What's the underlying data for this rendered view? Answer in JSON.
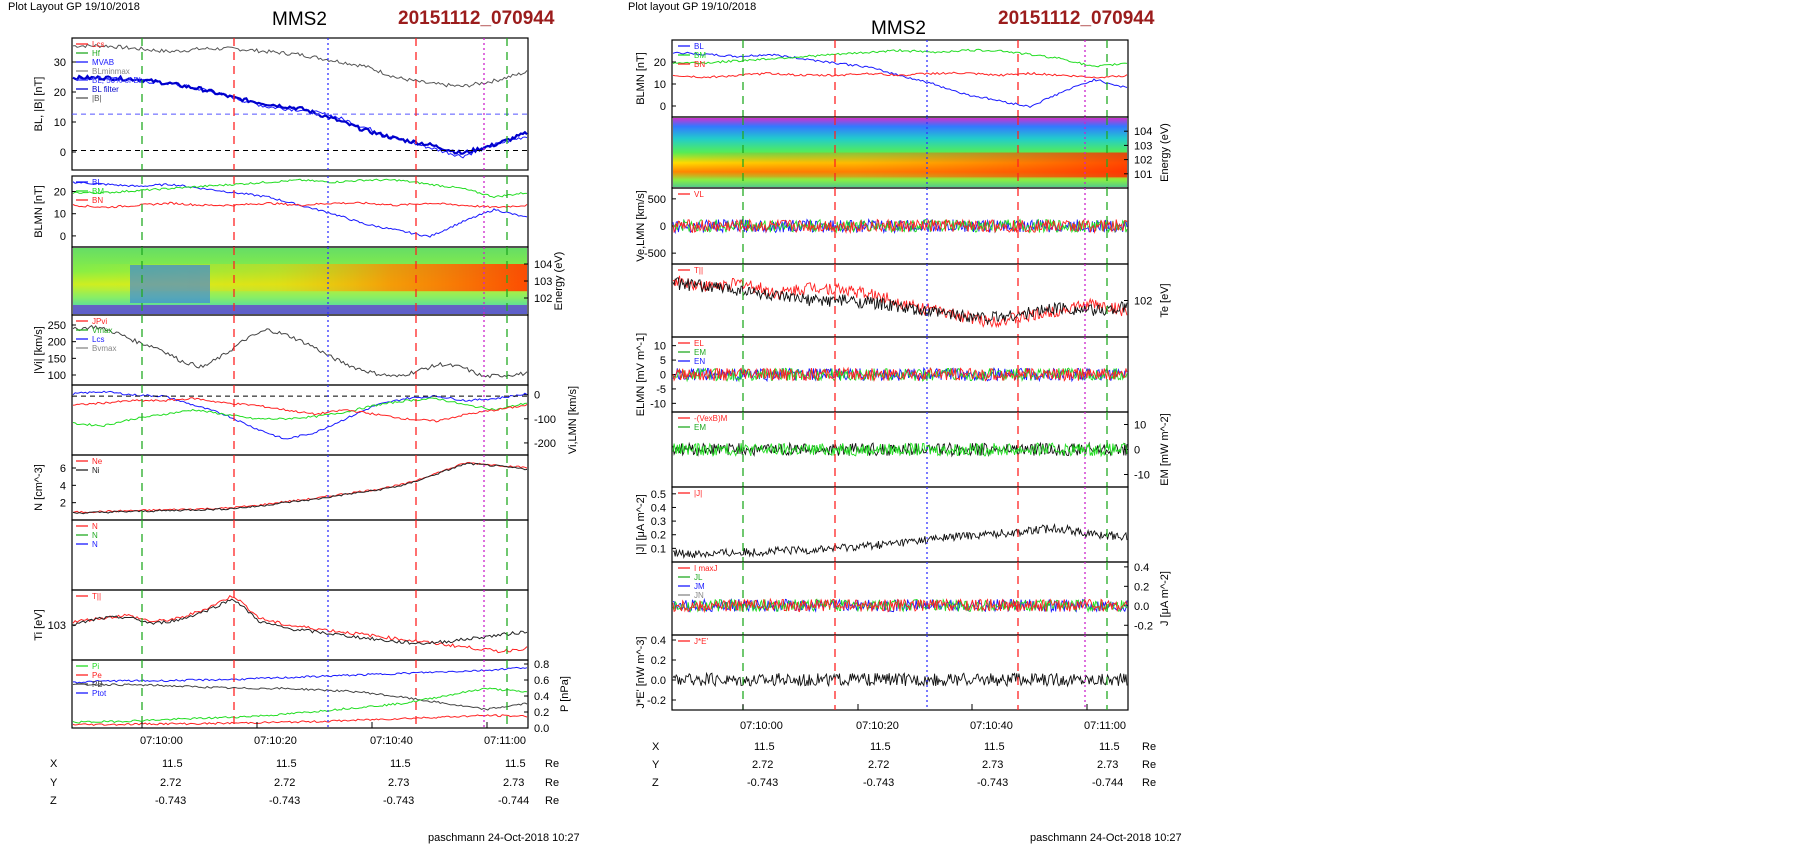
{
  "left": {
    "header": {
      "layout": "Plot Layout GP 19/10/2018",
      "spacecraft": "MMS2",
      "event_id": "20151112_070944"
    },
    "time_ticks": [
      "07:10:00",
      "07:10:20",
      "07:10:40",
      "07:11:00"
    ],
    "orbit_rows": [
      {
        "label": "X",
        "values": [
          "11.5",
          "11.5",
          "11.5",
          "11.5"
        ],
        "unit": "Re"
      },
      {
        "label": "Y",
        "values": [
          "2.72",
          "2.72",
          "2.73",
          "2.73"
        ],
        "unit": "Re"
      },
      {
        "label": "Z",
        "values": [
          "-0.743",
          "-0.743",
          "-0.743",
          "-0.744"
        ],
        "unit": "Re"
      }
    ],
    "footer": "paschmann 24-Oct-2018 10:27"
  },
  "right": {
    "header": {
      "layout": "Plot layout GP 19/10/2018",
      "spacecraft": "MMS2",
      "event_id": "20151112_070944"
    },
    "time_ticks": [
      "07:10:00",
      "07:10:20",
      "07:10:40",
      "07:11:00"
    ],
    "orbit_rows": [
      {
        "label": "X",
        "values": [
          "11.5",
          "11.5",
          "11.5",
          "11.5"
        ],
        "unit": "Re"
      },
      {
        "label": "Y",
        "values": [
          "2.72",
          "2.72",
          "2.73",
          "2.73"
        ],
        "unit": "Re"
      },
      {
        "label": "Z",
        "values": [
          "-0.743",
          "-0.743",
          "-0.743",
          "-0.744"
        ],
        "unit": "Re"
      }
    ],
    "footer": "paschmann 24-Oct-2018 10:27"
  },
  "chart_data": [
    {
      "type": "line",
      "panel": "left-1",
      "ylabel": "BL, |B| [nT]",
      "yticks": [
        "0",
        "10",
        "20",
        "30"
      ],
      "ylim": [
        -6,
        38
      ],
      "legend": [
        "Lcs",
        "Hf",
        "MVAB",
        "BLminmax",
        "BL, 50% of BL",
        "BL filter",
        "|B|"
      ],
      "series": [
        {
          "name": "|B|",
          "color": "#555555",
          "values": [
            36,
            36,
            35,
            34,
            35,
            35,
            34,
            33,
            31,
            29,
            25,
            23,
            22,
            24,
            27
          ]
        },
        {
          "name": "BL",
          "color": "#1a1aff",
          "values": [
            25,
            25,
            24,
            23,
            21,
            18,
            15,
            14,
            12,
            8,
            4,
            1,
            -2,
            2,
            5
          ]
        },
        {
          "name": "BL filter",
          "color": "#0000cc",
          "values": [
            25,
            25,
            24.5,
            23,
            21,
            18,
            16,
            14.5,
            11,
            7,
            4,
            2,
            -1,
            2,
            6
          ]
        }
      ],
      "hlines": [
        {
          "y": 12.5,
          "style": "blue-dashed"
        },
        {
          "y": 0,
          "style": "black-dashed"
        }
      ]
    },
    {
      "type": "line",
      "panel": "left-2",
      "ylabel": "BLMN [nT]",
      "yticks": [
        "0",
        "10",
        "20"
      ],
      "ylim": [
        -5,
        27
      ],
      "legend": [
        "BL",
        "BM",
        "BN"
      ],
      "series": [
        {
          "name": "BL",
          "color": "#1a1aff",
          "values": [
            25,
            24,
            23,
            24,
            22,
            20,
            18,
            14,
            10,
            5,
            2,
            -1,
            6,
            12,
            8
          ]
        },
        {
          "name": "BM",
          "color": "#22dd22",
          "values": [
            20,
            20,
            21,
            22,
            23,
            24,
            25,
            26,
            25,
            26,
            26,
            24,
            22,
            18,
            20
          ]
        },
        {
          "name": "BN",
          "color": "#ff2222",
          "values": [
            14,
            13,
            14,
            15,
            14,
            14,
            15,
            14,
            15,
            15,
            14,
            15,
            14,
            13,
            14
          ]
        }
      ]
    },
    {
      "type": "heatmap",
      "panel": "left-3",
      "ylabel": "Energy (eV)",
      "yticks": [
        "10^4",
        "10^3",
        "10^2"
      ]
    },
    {
      "type": "line",
      "panel": "left-4",
      "ylabel": "|Vi| [km/s]",
      "yticks": [
        "100",
        "150",
        "200",
        "250"
      ],
      "ylim": [
        70,
        280
      ],
      "legend": [
        "JPvi",
        "Vmax",
        "Lcs",
        "Bvmax"
      ],
      "series": [
        {
          "name": "|Vi|",
          "color": "#444444",
          "values": [
            240,
            250,
            230,
            200,
            180,
            140,
            120,
            160,
            210,
            240,
            220,
            190,
            150,
            120,
            100,
            90,
            110,
            130,
            120,
            90,
            95,
            100
          ]
        }
      ]
    },
    {
      "type": "line",
      "panel": "left-5",
      "ylabel": "Vi,LMN [km/s]",
      "yticks": [
        "0",
        "-100",
        "-200"
      ],
      "ylim": [
        -250,
        40
      ],
      "series": [
        {
          "name": "ViL",
          "color": "#1a1aff",
          "values": [
            10,
            20,
            5,
            0,
            -40,
            -80,
            -140,
            -190,
            -160,
            -100,
            -40,
            -10,
            0,
            -20,
            -10,
            10
          ]
        },
        {
          "name": "ViM",
          "color": "#22dd22",
          "values": [
            -120,
            -130,
            -100,
            -80,
            -60,
            -80,
            -100,
            -100,
            -90,
            -70,
            -40,
            -20,
            -10,
            -40,
            -60,
            -30
          ]
        },
        {
          "name": "ViN",
          "color": "#ff2222",
          "values": [
            -40,
            -30,
            -20,
            -20,
            -10,
            -30,
            -40,
            -60,
            -80,
            -60,
            -80,
            -100,
            -110,
            -80,
            -60,
            -40
          ]
        }
      ]
    },
    {
      "type": "line",
      "panel": "left-6",
      "ylabel": "N [cm^-3]",
      "yticks": [
        "2",
        "4",
        "6"
      ],
      "ylim": [
        0,
        7.5
      ],
      "legend": [
        "Ne",
        "Ni"
      ],
      "series": [
        {
          "name": "Ne",
          "color": "#ff2222",
          "values": [
            0.7,
            0.8,
            0.9,
            1.0,
            1.1,
            1.2,
            1.5,
            2.0,
            2.4,
            3.0,
            3.5,
            4.2,
            5.5,
            6.8,
            6.5,
            6.2
          ]
        },
        {
          "name": "Ni",
          "color": "#222222",
          "values": [
            0.6,
            0.7,
            0.8,
            0.9,
            1.0,
            1.1,
            1.4,
            1.9,
            2.3,
            2.9,
            3.4,
            4.1,
            5.4,
            6.7,
            6.4,
            6.0
          ]
        }
      ]
    },
    {
      "type": "line",
      "panel": "left-7",
      "legend": [
        "N",
        "N",
        "N"
      ]
    },
    {
      "type": "line",
      "panel": "left-8",
      "ylabel": "Ti [eV]",
      "yticks": [
        "10^3"
      ],
      "legend": [
        "T||"
      ],
      "series": [
        {
          "name": "T||",
          "color": "#ff2222",
          "values": [
            0.55,
            0.6,
            0.65,
            0.55,
            0.6,
            0.75,
            0.95,
            0.6,
            0.5,
            0.45,
            0.4,
            0.35,
            0.3,
            0.25,
            0.2,
            0.15,
            0.1,
            0.15
          ]
        },
        {
          "name": "Ti",
          "color": "#222222",
          "values": [
            0.5,
            0.6,
            0.62,
            0.52,
            0.58,
            0.72,
            0.9,
            0.55,
            0.45,
            0.4,
            0.35,
            0.3,
            0.25,
            0.22,
            0.25,
            0.3,
            0.35,
            0.4
          ]
        }
      ]
    },
    {
      "type": "line",
      "panel": "left-9",
      "ylabel": "P [nPa]",
      "yticks": [
        "0.0",
        "0.2",
        "0.4",
        "0.6",
        "0.8"
      ],
      "ylim": [
        0,
        0.85
      ],
      "legend": [
        "Pi",
        "Pe",
        "PB",
        "Ptot"
      ],
      "series": [
        {
          "name": "Ptot",
          "color": "#1a1aff",
          "values": [
            0.58,
            0.6,
            0.6,
            0.61,
            0.62,
            0.64,
            0.66,
            0.68,
            0.7,
            0.72,
            0.74,
            0.78
          ]
        },
        {
          "name": "PB",
          "color": "#444444",
          "values": [
            0.55,
            0.55,
            0.54,
            0.52,
            0.5,
            0.5,
            0.48,
            0.45,
            0.38,
            0.3,
            0.22,
            0.3
          ]
        },
        {
          "name": "Pi",
          "color": "#22dd22",
          "values": [
            0.05,
            0.06,
            0.08,
            0.1,
            0.12,
            0.15,
            0.2,
            0.25,
            0.3,
            0.4,
            0.5,
            0.45
          ]
        },
        {
          "name": "Pe",
          "color": "#ff2222",
          "values": [
            0.02,
            0.02,
            0.03,
            0.03,
            0.04,
            0.05,
            0.06,
            0.08,
            0.1,
            0.12,
            0.14,
            0.13
          ]
        }
      ]
    },
    {
      "type": "line",
      "panel": "right-1",
      "ylabel": "BLMN [nT]",
      "yticks": [
        "0",
        "10",
        "20"
      ],
      "ylim": [
        -5,
        30
      ],
      "legend": [
        "BL",
        "BM",
        "BN"
      ],
      "series": [
        {
          "name": "BL",
          "color": "#1a1aff",
          "values": [
            25,
            24,
            23,
            24,
            22,
            20,
            18,
            14,
            10,
            5,
            2,
            -1,
            6,
            12,
            8
          ]
        },
        {
          "name": "BM",
          "color": "#22dd22",
          "values": [
            20,
            20,
            21,
            22,
            23,
            24,
            25,
            26,
            25,
            26,
            26,
            24,
            22,
            18,
            20
          ]
        },
        {
          "name": "BN",
          "color": "#ff2222",
          "values": [
            14,
            13,
            14,
            15,
            14,
            14,
            15,
            14,
            15,
            15,
            14,
            15,
            14,
            13,
            14
          ]
        }
      ]
    },
    {
      "type": "heatmap",
      "panel": "right-2",
      "ylabel": "Energy (eV)",
      "yticks": [
        "10^4",
        "10^3",
        "10^2",
        "10^1"
      ]
    },
    {
      "type": "line",
      "panel": "right-3",
      "ylabel": "Ve,LMN [km/s]",
      "yticks": [
        "500",
        "0",
        "-500"
      ],
      "ylim": [
        -700,
        700
      ],
      "legend": [
        "VL"
      ]
    },
    {
      "type": "line",
      "panel": "right-4",
      "ylabel": "Te [eV]",
      "yticks": [
        "10^2"
      ],
      "legend": [
        "T||"
      ]
    },
    {
      "type": "line",
      "panel": "right-5",
      "ylabel": "ELMN [mV m^-1]",
      "yticks": [
        "10",
        "5",
        "0",
        "-5",
        "-10"
      ],
      "ylim": [
        -13,
        13
      ],
      "legend": [
        "EL",
        "EM",
        "EN"
      ]
    },
    {
      "type": "line",
      "panel": "right-6",
      "ylabel": "EM [mW m^-2]",
      "yticks": [
        "10",
        "0",
        "-10"
      ],
      "ylim": [
        -15,
        15
      ],
      "legend": [
        "-(VexB)M",
        "EM"
      ]
    },
    {
      "type": "line",
      "panel": "right-7",
      "ylabel": "|J| [μA m^-2]",
      "yticks": [
        "0.1",
        "0.2",
        "0.3",
        "0.4",
        "0.5"
      ],
      "ylim": [
        0,
        0.55
      ],
      "legend": [
        "|J|"
      ]
    },
    {
      "type": "line",
      "panel": "right-8",
      "ylabel": "J [μA m^-2]",
      "yticks": [
        "0.4",
        "0.2",
        "0.0",
        "-0.2"
      ],
      "ylim": [
        -0.3,
        0.45
      ],
      "legend": [
        "I maxJ",
        "JL",
        "JM",
        "JN"
      ]
    },
    {
      "type": "line",
      "panel": "right-9",
      "ylabel": "J*E' [nW m^-3]",
      "yticks": [
        "0.4",
        "0.2",
        "0.0",
        "-0.2"
      ],
      "ylim": [
        -0.3,
        0.45
      ],
      "legend": [
        "J*E'"
      ]
    }
  ]
}
